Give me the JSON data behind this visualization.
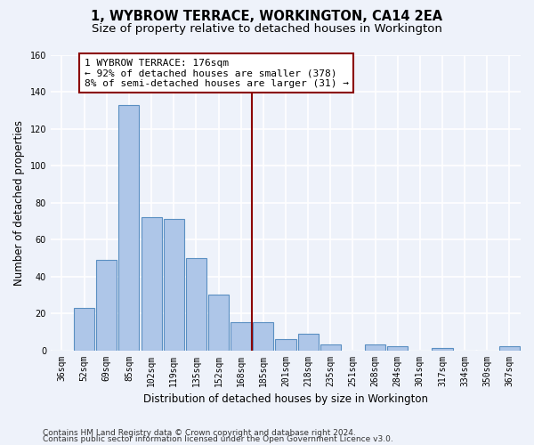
{
  "title": "1, WYBROW TERRACE, WORKINGTON, CA14 2EA",
  "subtitle": "Size of property relative to detached houses in Workington",
  "xlabel": "Distribution of detached houses by size in Workington",
  "ylabel": "Number of detached properties",
  "bin_labels": [
    "36sqm",
    "52sqm",
    "69sqm",
    "85sqm",
    "102sqm",
    "119sqm",
    "135sqm",
    "152sqm",
    "168sqm",
    "185sqm",
    "201sqm",
    "218sqm",
    "235sqm",
    "251sqm",
    "268sqm",
    "284sqm",
    "301sqm",
    "317sqm",
    "334sqm",
    "350sqm",
    "367sqm"
  ],
  "bar_values": [
    0,
    23,
    49,
    133,
    72,
    71,
    50,
    30,
    15,
    15,
    6,
    9,
    3,
    0,
    3,
    2,
    0,
    1,
    0,
    0,
    2
  ],
  "bar_color": "#aec6e8",
  "bar_edge_color": "#5a8fc2",
  "vline_x_index": 8.5,
  "vline_color": "#8b0000",
  "annotation_text": "1 WYBROW TERRACE: 176sqm\n← 92% of detached houses are smaller (378)\n8% of semi-detached houses are larger (31) →",
  "annotation_box_color": "#ffffff",
  "annotation_box_edge_color": "#8b0000",
  "ylim": [
    0,
    160
  ],
  "yticks": [
    0,
    20,
    40,
    60,
    80,
    100,
    120,
    140,
    160
  ],
  "footer_line1": "Contains HM Land Registry data © Crown copyright and database right 2024.",
  "footer_line2": "Contains public sector information licensed under the Open Government Licence v3.0.",
  "bg_color": "#eef2fa",
  "grid_color": "#ffffff",
  "title_fontsize": 10.5,
  "subtitle_fontsize": 9.5,
  "axis_label_fontsize": 8.5,
  "tick_fontsize": 7,
  "annotation_fontsize": 8,
  "footer_fontsize": 6.5
}
